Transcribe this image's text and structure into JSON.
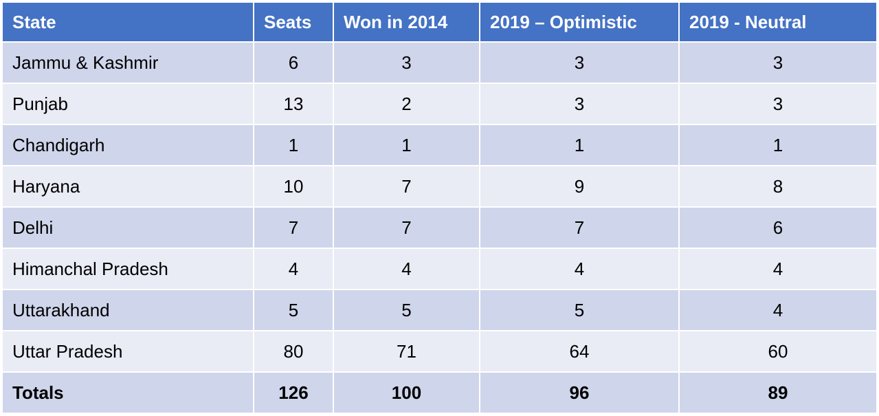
{
  "table": {
    "header": [
      "State",
      "Seats",
      "Won in 2014",
      "2019 – Optimistic",
      "2019 - Neutral"
    ],
    "rows": [
      [
        "Jammu & Kashmir",
        6,
        3,
        3,
        3
      ],
      [
        "Punjab",
        13,
        2,
        3,
        3
      ],
      [
        "Chandigarh",
        1,
        1,
        1,
        1
      ],
      [
        "Haryana",
        10,
        7,
        9,
        8
      ],
      [
        "Delhi",
        7,
        7,
        7,
        6
      ],
      [
        "Himanchal Pradesh",
        4,
        4,
        4,
        4
      ],
      [
        "Uttarakhand",
        5,
        5,
        5,
        4
      ],
      [
        "Uttar Pradesh",
        80,
        71,
        64,
        60
      ]
    ],
    "totals": [
      "Totals",
      126,
      100,
      96,
      89
    ]
  }
}
